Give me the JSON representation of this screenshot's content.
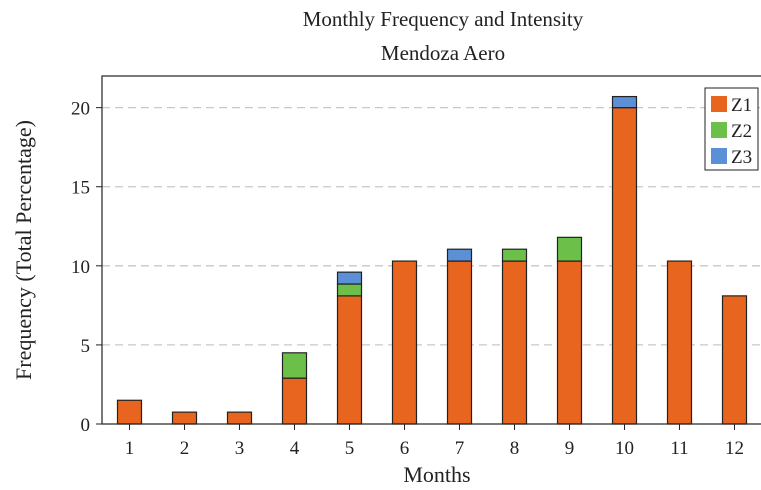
{
  "chart_data": {
    "type": "bar",
    "stacked": true,
    "title": "Monthly Frequency and Intensity",
    "subtitle": "Mendoza Aero",
    "xlabel": "Months",
    "ylabel": "Frequency (Total Percentage)",
    "categories": [
      "1",
      "2",
      "3",
      "4",
      "5",
      "6",
      "7",
      "8",
      "9",
      "10",
      "11",
      "12"
    ],
    "ylim": [
      0,
      22
    ],
    "yticks": [
      0,
      5,
      10,
      15,
      20
    ],
    "grid": "horizontal-dashed",
    "legend_position": "top-right",
    "series": [
      {
        "name": "Z1",
        "color": "#e8651f",
        "values": [
          1.5,
          0.75,
          0.75,
          2.9,
          8.1,
          10.3,
          10.3,
          10.3,
          10.3,
          20.0,
          10.3,
          8.1
        ]
      },
      {
        "name": "Z2",
        "color": "#6cc04a",
        "values": [
          0,
          0,
          0,
          1.6,
          0.75,
          0,
          0,
          0.75,
          1.5,
          0,
          0,
          0
        ]
      },
      {
        "name": "Z3",
        "color": "#5b8fd6",
        "values": [
          0,
          0,
          0,
          0,
          0.75,
          0,
          0.75,
          0,
          0,
          0.7,
          0,
          0
        ]
      }
    ]
  }
}
